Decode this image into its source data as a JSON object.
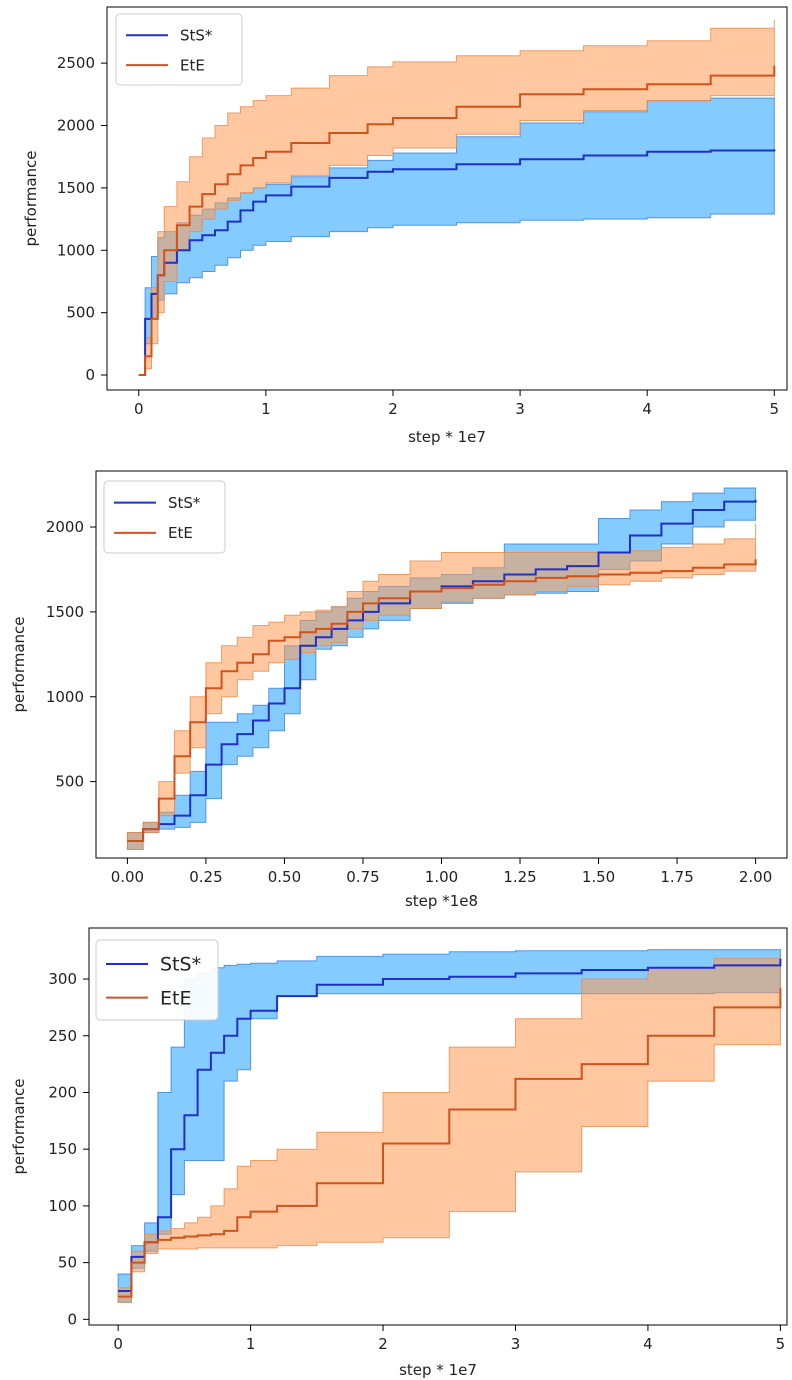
{
  "colors": {
    "sts_line": "#1f2fc8",
    "sts_band": "#1fa2ff",
    "ete_line": "#d2521c",
    "ete_band": "#ff9a52",
    "axis": "#000000",
    "text": "#222222"
  },
  "chart_data": [
    {
      "type": "line",
      "xlabel": "step * 1e7",
      "ylabel": "performance",
      "xlim": [
        -0.25,
        5.1
      ],
      "ylim": [
        -120,
        2950
      ],
      "xticks": [
        0,
        1,
        2,
        3,
        4,
        5
      ],
      "xtick_labels": [
        "0",
        "1",
        "2",
        "3",
        "4",
        "5"
      ],
      "yticks": [
        0,
        500,
        1000,
        1500,
        2000,
        2500
      ],
      "ytick_labels": [
        "0",
        "500",
        "1000",
        "1500",
        "2000",
        "2500"
      ],
      "legend": {
        "position": "top-left",
        "entries": [
          "StS*",
          "EtE"
        ]
      },
      "series": [
        {
          "name": "StS*",
          "x": [
            0,
            0.05,
            0.1,
            0.15,
            0.2,
            0.3,
            0.4,
            0.5,
            0.6,
            0.7,
            0.8,
            0.9,
            1.0,
            1.2,
            1.5,
            1.8,
            2.0,
            2.5,
            3.0,
            3.5,
            4.0,
            4.5,
            5.0
          ],
          "mean": [
            0,
            450,
            650,
            800,
            900,
            1000,
            1080,
            1120,
            1160,
            1230,
            1320,
            1390,
            1440,
            1510,
            1580,
            1630,
            1650,
            1690,
            1730,
            1760,
            1790,
            1800,
            1810
          ],
          "upper": [
            0,
            700,
            950,
            1100,
            1150,
            1220,
            1280,
            1330,
            1380,
            1420,
            1460,
            1500,
            1530,
            1590,
            1660,
            1720,
            1780,
            1910,
            2020,
            2110,
            2200,
            2220,
            2230
          ],
          "lower": [
            0,
            250,
            450,
            600,
            650,
            740,
            780,
            830,
            880,
            940,
            1000,
            1040,
            1070,
            1110,
            1150,
            1180,
            1200,
            1220,
            1240,
            1250,
            1260,
            1290,
            1310
          ]
        },
        {
          "name": "EtE",
          "x": [
            0,
            0.05,
            0.1,
            0.15,
            0.2,
            0.3,
            0.4,
            0.5,
            0.6,
            0.7,
            0.8,
            0.9,
            1.0,
            1.2,
            1.5,
            1.8,
            2.0,
            2.5,
            3.0,
            3.5,
            4.0,
            4.5,
            5.0
          ],
          "mean": [
            0,
            150,
            450,
            800,
            1000,
            1200,
            1350,
            1450,
            1530,
            1610,
            1680,
            1740,
            1790,
            1860,
            1940,
            2010,
            2060,
            2150,
            2250,
            2290,
            2330,
            2400,
            2480
          ],
          "upper": [
            0,
            300,
            700,
            1150,
            1350,
            1550,
            1750,
            1900,
            2000,
            2100,
            2150,
            2200,
            2240,
            2300,
            2400,
            2470,
            2510,
            2560,
            2600,
            2640,
            2680,
            2780,
            2850
          ],
          "lower": [
            0,
            50,
            250,
            500,
            750,
            1000,
            1150,
            1250,
            1330,
            1400,
            1460,
            1500,
            1540,
            1600,
            1680,
            1760,
            1820,
            1930,
            2040,
            2120,
            2200,
            2240,
            2260
          ]
        }
      ]
    },
    {
      "type": "line",
      "xlabel": "step *1e8",
      "ylabel": "performance",
      "xlim": [
        -0.1,
        2.1
      ],
      "ylim": [
        50,
        2330
      ],
      "xticks": [
        0,
        0.25,
        0.5,
        0.75,
        1.0,
        1.25,
        1.5,
        1.75,
        2.0
      ],
      "xtick_labels": [
        "0.00",
        "0.25",
        "0.50",
        "0.75",
        "1.00",
        "1.25",
        "1.50",
        "1.75",
        "2.00"
      ],
      "yticks": [
        500,
        1000,
        1500,
        2000
      ],
      "ytick_labels": [
        "500",
        "1000",
        "1500",
        "2000"
      ],
      "legend": {
        "position": "top-left",
        "entries": [
          "StS*",
          "EtE"
        ]
      },
      "series": [
        {
          "name": "StS*",
          "x": [
            0,
            0.05,
            0.1,
            0.15,
            0.2,
            0.25,
            0.3,
            0.35,
            0.4,
            0.45,
            0.5,
            0.55,
            0.6,
            0.65,
            0.7,
            0.75,
            0.8,
            0.9,
            1.0,
            1.1,
            1.2,
            1.3,
            1.4,
            1.5,
            1.6,
            1.7,
            1.8,
            1.9,
            2.0
          ],
          "mean": [
            150,
            220,
            250,
            300,
            420,
            600,
            720,
            780,
            860,
            960,
            1050,
            1300,
            1350,
            1400,
            1450,
            1500,
            1550,
            1620,
            1650,
            1680,
            1720,
            1750,
            1770,
            1850,
            1950,
            2020,
            2100,
            2150,
            2160
          ],
          "upper": [
            200,
            260,
            320,
            420,
            560,
            850,
            850,
            900,
            950,
            1050,
            1300,
            1450,
            1500,
            1530,
            1580,
            1620,
            1650,
            1700,
            1720,
            1760,
            1900,
            1900,
            1900,
            2050,
            2100,
            2150,
            2200,
            2230,
            2230
          ],
          "lower": [
            100,
            200,
            220,
            230,
            260,
            400,
            600,
            650,
            700,
            800,
            900,
            1100,
            1280,
            1300,
            1350,
            1400,
            1450,
            1520,
            1550,
            1580,
            1600,
            1610,
            1620,
            1750,
            1800,
            1900,
            2000,
            2040,
            2050
          ]
        },
        {
          "name": "EtE",
          "x": [
            0,
            0.05,
            0.1,
            0.15,
            0.2,
            0.25,
            0.3,
            0.35,
            0.4,
            0.45,
            0.5,
            0.55,
            0.6,
            0.65,
            0.7,
            0.75,
            0.8,
            0.9,
            1.0,
            1.1,
            1.2,
            1.3,
            1.4,
            1.5,
            1.6,
            1.7,
            1.8,
            1.9,
            2.0
          ],
          "mean": [
            150,
            220,
            400,
            650,
            850,
            1050,
            1150,
            1200,
            1250,
            1330,
            1350,
            1380,
            1400,
            1430,
            1500,
            1550,
            1580,
            1620,
            1640,
            1660,
            1680,
            1700,
            1710,
            1720,
            1730,
            1740,
            1760,
            1780,
            1810
          ],
          "upper": [
            200,
            260,
            500,
            800,
            1000,
            1200,
            1300,
            1350,
            1420,
            1440,
            1480,
            1500,
            1510,
            1530,
            1620,
            1680,
            1720,
            1800,
            1850,
            1850,
            1850,
            1850,
            1850,
            1850,
            1860,
            1880,
            1900,
            1930,
            2020
          ],
          "lower": [
            100,
            200,
            300,
            550,
            700,
            900,
            1000,
            1100,
            1150,
            1200,
            1220,
            1260,
            1300,
            1320,
            1400,
            1450,
            1480,
            1520,
            1560,
            1580,
            1600,
            1620,
            1650,
            1660,
            1680,
            1700,
            1720,
            1740,
            1750
          ]
        }
      ]
    },
    {
      "type": "line",
      "xlabel": "step * 1e7",
      "ylabel": "performance",
      "xlim": [
        -0.22,
        5.05
      ],
      "ylim": [
        -5,
        345
      ],
      "xticks": [
        0,
        1,
        2,
        3,
        4,
        5
      ],
      "xtick_labels": [
        "0",
        "1",
        "2",
        "3",
        "4",
        "5"
      ],
      "yticks": [
        0,
        50,
        100,
        150,
        200,
        250,
        300
      ],
      "ytick_labels": [
        "0",
        "50",
        "100",
        "150",
        "200",
        "250",
        "300"
      ],
      "legend": {
        "position": "top-left",
        "entries": [
          "StS*",
          "EtE"
        ]
      },
      "series": [
        {
          "name": "StS*",
          "x": [
            0,
            0.1,
            0.2,
            0.3,
            0.4,
            0.5,
            0.6,
            0.7,
            0.8,
            0.9,
            1.0,
            1.2,
            1.5,
            2.0,
            2.5,
            3.0,
            3.5,
            4.0,
            4.5,
            5.0
          ],
          "mean": [
            25,
            55,
            68,
            90,
            150,
            180,
            220,
            235,
            250,
            265,
            272,
            285,
            295,
            300,
            302,
            305,
            308,
            310,
            312,
            318
          ],
          "upper": [
            40,
            65,
            85,
            200,
            240,
            300,
            305,
            310,
            312,
            313,
            314,
            316,
            320,
            322,
            324,
            325,
            325,
            326,
            326,
            326
          ],
          "lower": [
            15,
            45,
            60,
            75,
            110,
            140,
            140,
            140,
            210,
            220,
            265,
            285,
            287,
            287,
            287,
            287,
            287,
            287,
            288,
            292
          ]
        },
        {
          "name": "EtE",
          "x": [
            0,
            0.1,
            0.2,
            0.3,
            0.4,
            0.5,
            0.6,
            0.7,
            0.8,
            0.9,
            1.0,
            1.2,
            1.5,
            2.0,
            2.5,
            3.0,
            3.5,
            4.0,
            4.5,
            5.0
          ],
          "mean": [
            20,
            50,
            68,
            70,
            72,
            73,
            74,
            75,
            78,
            90,
            95,
            100,
            120,
            155,
            185,
            212,
            225,
            250,
            275,
            292
          ],
          "upper": [
            28,
            60,
            75,
            78,
            80,
            85,
            90,
            100,
            115,
            135,
            140,
            150,
            165,
            200,
            240,
            265,
            300,
            310,
            318,
            320
          ],
          "lower": [
            15,
            42,
            58,
            62,
            62,
            62,
            63,
            63,
            63,
            63,
            63,
            65,
            68,
            72,
            95,
            130,
            170,
            210,
            242,
            252
          ]
        }
      ]
    }
  ]
}
